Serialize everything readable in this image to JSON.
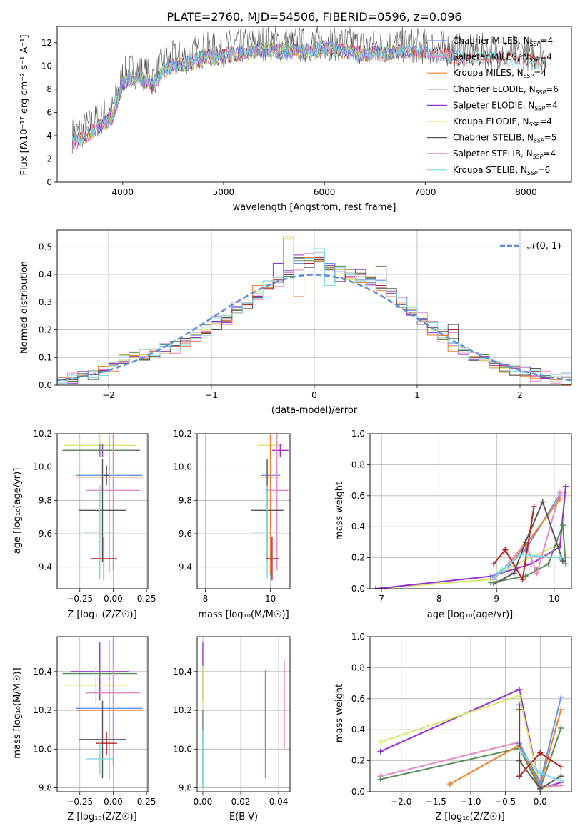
{
  "title": "PLATE=2760, MJD=54506, FIBERID=0596, z=0.096",
  "colors": {
    "Chabrier MILES": "#6495ed",
    "Salpeter MILES": "#e78ac3",
    "Kroupa MILES": "#f07f2a",
    "Chabrier ELODIE": "#5b8c5a",
    "Salpeter ELODIE": "#9932cc",
    "Kroupa ELODIE": "#d4e86b",
    "Chabrier STELIB": "#555555",
    "Salpeter STELIB": "#b22222",
    "Kroupa STELIB": "#7ed9de",
    "gaussian": "#5b8fd9"
  },
  "panel_labels": {
    "p1_xlabel": "wavelength [Angstrom, rest frame]",
    "p1_ylabel": "Flux [fλ10⁻¹⁷ erg cm⁻² s⁻¹ A⁻¹]",
    "p2_xlabel": "(data-model)/error",
    "p2_ylabel": "Normed distribution",
    "p2_legend": "𝒩(0, 1)",
    "p3_xlabel": "Z [log₁₀(Z/Z☉)]",
    "p3_ylabel": "age  [log₁₀(age/yr)]",
    "p4_xlabel": "mass [log₁₀(M/M☉)]",
    "p5_xlabel": "age  [log₁₀(age/yr)]",
    "p5_ylabel": "mass weight",
    "p6_xlabel": "Z [log₁₀(Z/Z☉)]",
    "p6_ylabel": "mass [log₁₀(M/M☉)]",
    "p7_xlabel": "E(B-V)",
    "p8_xlabel": "Z [log₁₀(Z/Z☉)]",
    "p8_ylabel": "mass weight"
  },
  "legend": [
    {
      "name": "Chabrier MILES",
      "nssp": "4"
    },
    {
      "name": "Salpeter MILES",
      "nssp": "4"
    },
    {
      "name": "Kroupa MILES",
      "nssp": "4"
    },
    {
      "name": "Chabrier ELODIE",
      "nssp": "6"
    },
    {
      "name": "Salpeter ELODIE",
      "nssp": "4"
    },
    {
      "name": "Kroupa ELODIE",
      "nssp": "4"
    },
    {
      "name": "Chabrier STELIB",
      "nssp": "5"
    },
    {
      "name": "Salpeter STELIB",
      "nssp": "4"
    },
    {
      "name": "Kroupa STELIB",
      "nssp": "6"
    }
  ],
  "chart_data": [
    {
      "type": "line",
      "id": "spectrum",
      "title": "PLATE=2760, MJD=54506, FIBERID=0596, z=0.096",
      "xlabel": "wavelength [Angstrom, rest frame]",
      "ylabel": "Flux [fλ10⁻¹⁷ erg cm⁻² s⁻¹ A⁻¹]",
      "xlim": [
        3350,
        8450
      ],
      "ylim": [
        0,
        13.4
      ],
      "xticks": [
        4000,
        5000,
        6000,
        7000,
        8000
      ],
      "yticks": [
        0,
        2,
        4,
        6,
        8,
        10,
        12
      ],
      "x": [
        3500,
        3600,
        3700,
        3800,
        3900,
        4000,
        4100,
        4200,
        4300,
        4400,
        4500,
        4600,
        4700,
        4800,
        4900,
        5000,
        5200,
        5400,
        5600,
        5800,
        6000,
        6200,
        6400,
        6600,
        6800,
        7000,
        7200,
        7400,
        7600,
        7800,
        8000,
        8200
      ],
      "series": [
        {
          "name": "Chabrier MILES",
          "values": [
            3.4,
            3.8,
            4.4,
            5.0,
            5.6,
            8.6,
            9.0,
            8.8,
            8.3,
            9.6,
            10.0,
            10.1,
            10.4,
            10.8,
            10.7,
            10.9,
            11.1,
            11.4,
            11.3,
            11.2,
            11.5,
            11.3,
            11.0,
            11.1,
            11.2,
            11.1,
            10.9,
            10.6,
            10.7,
            10.6,
            10.5,
            10.3
          ]
        },
        {
          "name": "Chabrier STELIB",
          "values": [
            4.2,
            4.6,
            5.2,
            5.6,
            6.0,
            8.8,
            9.2,
            9.0,
            8.6,
            9.9,
            10.2,
            10.4,
            10.7,
            11.0,
            10.9,
            11.1,
            11.3,
            11.6,
            11.5,
            11.4,
            11.7,
            11.5,
            11.2,
            11.3,
            11.4,
            11.3,
            11.1,
            10.8,
            10.9,
            10.8,
            10.7,
            10.5
          ]
        }
      ],
      "legend_position": "upper right"
    },
    {
      "type": "histogram",
      "id": "residuals",
      "xlabel": "(data-model)/error",
      "ylabel": "Normed distribution",
      "xlim": [
        -2.5,
        2.5
      ],
      "ylim": [
        0,
        0.56
      ],
      "xticks": [
        -2,
        -1,
        0,
        1,
        2
      ],
      "yticks": [
        0.0,
        0.1,
        0.2,
        0.3,
        0.4,
        0.5
      ],
      "bin_edges_start": -2.5,
      "bin_width": 0.1,
      "series": [
        {
          "name": "Chabrier MILES",
          "values": [
            0.02,
            0.02,
            0.03,
            0.04,
            0.05,
            0.07,
            0.09,
            0.1,
            0.11,
            0.12,
            0.14,
            0.14,
            0.15,
            0.18,
            0.2,
            0.23,
            0.24,
            0.28,
            0.29,
            0.33,
            0.36,
            0.38,
            0.4,
            0.44,
            0.46,
            0.48,
            0.44,
            0.41,
            0.4,
            0.38,
            0.38,
            0.36,
            0.33,
            0.3,
            0.27,
            0.24,
            0.21,
            0.17,
            0.15,
            0.12,
            0.1,
            0.09,
            0.08,
            0.07,
            0.06,
            0.05,
            0.04,
            0.04,
            0.03,
            0.03
          ]
        },
        {
          "name": "Salpeter STELIB",
          "values": [
            0.02,
            0.02,
            0.03,
            0.04,
            0.05,
            0.07,
            0.08,
            0.1,
            0.11,
            0.12,
            0.13,
            0.14,
            0.16,
            0.17,
            0.19,
            0.22,
            0.23,
            0.27,
            0.29,
            0.32,
            0.35,
            0.38,
            0.4,
            0.45,
            0.44,
            0.46,
            0.42,
            0.39,
            0.39,
            0.4,
            0.37,
            0.36,
            0.34,
            0.3,
            0.26,
            0.22,
            0.2,
            0.18,
            0.2,
            0.12,
            0.1,
            0.09,
            0.08,
            0.07,
            0.05,
            0.05,
            0.05,
            0.04,
            0.03,
            0.03
          ]
        },
        {
          "name": "Kroupa ELODIE",
          "values": [
            0.02,
            0.02,
            0.03,
            0.04,
            0.05,
            0.07,
            0.09,
            0.1,
            0.11,
            0.12,
            0.13,
            0.14,
            0.15,
            0.17,
            0.2,
            0.22,
            0.25,
            0.27,
            0.3,
            0.34,
            0.36,
            0.39,
            0.53,
            0.42,
            0.45,
            0.45,
            0.43,
            0.4,
            0.38,
            0.37,
            0.39,
            0.35,
            0.33,
            0.3,
            0.26,
            0.24,
            0.2,
            0.17,
            0.14,
            0.12,
            0.1,
            0.09,
            0.07,
            0.06,
            0.05,
            0.05,
            0.04,
            0.03,
            0.03,
            0.02
          ]
        }
      ],
      "reference": {
        "name": "𝒩(0, 1)",
        "mu": 0,
        "sigma": 1
      }
    },
    {
      "type": "scatter",
      "id": "age_vs_Z",
      "xlabel": "Z [log₁₀(Z/Z☉)]",
      "ylabel": "age  [log₁₀(age/yr)]",
      "xlim": [
        -0.42,
        0.26
      ],
      "ylim": [
        9.27,
        10.2
      ],
      "xticks": [
        -0.25,
        0.0,
        0.25
      ],
      "yticks": [
        9.4,
        9.6,
        9.8,
        10.0,
        10.2
      ],
      "points": [
        {
          "series": "Kroupa ELODIE",
          "x": -0.1,
          "y": 10.13,
          "xerr": 0.27,
          "yerr": 0.07
        },
        {
          "series": "Salpeter ELODIE",
          "x": -0.08,
          "y": 10.1,
          "xerr": 0.28,
          "yerr": 0.04
        },
        {
          "series": "Chabrier ELODIE",
          "x": -0.1,
          "y": 10.1,
          "xerr": 0.28,
          "yerr": 0.04
        },
        {
          "series": "Chabrier MILES",
          "x": -0.03,
          "y": 9.95,
          "xerr": 0.25,
          "yerr": 0.58
        },
        {
          "series": "Kroupa MILES",
          "x": -0.03,
          "y": 9.94,
          "xerr": 0.25,
          "yerr": 0.56
        },
        {
          "series": "Chabrier STELIB",
          "x": -0.05,
          "y": 9.95,
          "xerr": 0.02,
          "yerr": 0.06
        },
        {
          "series": "Salpeter MILES",
          "x": 0.0,
          "y": 9.86,
          "xerr": 0.2,
          "yerr": 0.48
        },
        {
          "series": "Chabrier STELIB",
          "x": -0.08,
          "y": 9.74,
          "xerr": 0.18,
          "yerr": 0.31
        },
        {
          "series": "Kroupa STELIB",
          "x": -0.1,
          "y": 9.61,
          "xerr": 0.12,
          "yerr": 0.28
        },
        {
          "series": "Salpeter STELIB",
          "x": -0.07,
          "y": 9.45,
          "xerr": 0.1,
          "yerr": 0.13
        }
      ]
    },
    {
      "type": "scatter",
      "id": "age_vs_mass",
      "xlabel": "mass [log₁₀(M/M☉)]",
      "xlim": [
        7.75,
        10.6
      ],
      "ylim": [
        9.27,
        10.2
      ],
      "xticks": [
        8,
        10
      ],
      "xtick_labels": [
        "8",
        "10"
      ],
      "yticks": [
        9.4,
        9.6,
        9.8,
        10.0,
        10.2
      ],
      "points": [
        {
          "series": "Kroupa ELODIE",
          "x": 10.0,
          "y": 10.13,
          "xerr": 0.4,
          "yerr": 0.07
        },
        {
          "series": "Salpeter ELODIE",
          "x": 10.3,
          "y": 10.1,
          "xerr": 0.25,
          "yerr": 0.04
        },
        {
          "series": "Chabrier MILES",
          "x": 10.0,
          "y": 9.95,
          "xerr": 0.3,
          "yerr": 0.6
        },
        {
          "series": "Kroupa MILES",
          "x": 10.0,
          "y": 9.94,
          "xerr": 0.3,
          "yerr": 0.58
        },
        {
          "series": "Salpeter MILES",
          "x": 10.2,
          "y": 9.86,
          "xerr": 0.35,
          "yerr": 0.48
        },
        {
          "series": "Chabrier STELIB",
          "x": 9.9,
          "y": 9.74,
          "xerr": 0.5,
          "yerr": 0.31
        },
        {
          "series": "Kroupa STELIB",
          "x": 9.9,
          "y": 9.61,
          "xerr": 0.45,
          "yerr": 0.28
        },
        {
          "series": "Salpeter STELIB",
          "x": 10.05,
          "y": 9.45,
          "xerr": 0.2,
          "yerr": 0.13
        }
      ]
    },
    {
      "type": "line",
      "id": "weight_vs_age",
      "xlabel": "age  [log₁₀(age/yr)]",
      "ylabel": "mass weight",
      "xlim": [
        6.8,
        10.3
      ],
      "ylim": [
        0,
        1.0
      ],
      "xticks": [
        7,
        8,
        9,
        10
      ],
      "yticks": [
        0.0,
        0.2,
        0.4,
        0.6,
        0.8,
        1.0
      ],
      "series": [
        {
          "name": "Kroupa ELODIE",
          "x": [
            6.9,
            8.9,
            9.3,
            10.1,
            10.2
          ],
          "y": [
            0.0,
            0.06,
            0.15,
            0.29,
            0.62
          ]
        },
        {
          "name": "Salpeter ELODIE",
          "x": [
            6.9,
            8.9,
            9.6,
            10.1,
            10.2
          ],
          "y": [
            0.0,
            0.08,
            0.16,
            0.27,
            0.66
          ]
        },
        {
          "name": "Chabrier ELODIE",
          "x": [
            8.9,
            9.5,
            9.7,
            9.9,
            10.15,
            10.2
          ],
          "y": [
            0.04,
            0.08,
            0.12,
            0.16,
            0.41,
            0.16
          ]
        },
        {
          "name": "Chabrier MILES",
          "x": [
            8.95,
            9.2,
            9.5,
            10.1
          ],
          "y": [
            0.08,
            0.15,
            0.25,
            0.61
          ]
        },
        {
          "name": "Salpeter MILES",
          "x": [
            8.95,
            9.3,
            9.5,
            9.7,
            10.1
          ],
          "y": [
            0.06,
            0.2,
            0.3,
            0.1,
            0.62
          ]
        },
        {
          "name": "Kroupa MILES",
          "x": [
            8.95,
            9.25,
            9.5,
            10.1
          ],
          "y": [
            0.07,
            0.17,
            0.28,
            0.58
          ]
        },
        {
          "name": "Chabrier STELIB",
          "x": [
            8.95,
            9.3,
            9.5,
            9.8,
            10.15
          ],
          "y": [
            0.03,
            0.1,
            0.3,
            0.56,
            0.18
          ]
        },
        {
          "name": "Salpeter STELIB",
          "x": [
            8.95,
            9.15,
            9.45,
            9.65
          ],
          "y": [
            0.16,
            0.25,
            0.06,
            0.53
          ]
        },
        {
          "name": "Kroupa STELIB",
          "x": [
            8.95,
            9.1,
            9.4,
            10.1
          ],
          "y": [
            0.07,
            0.12,
            0.22,
            0.2
          ]
        }
      ]
    },
    {
      "type": "scatter",
      "id": "mass_vs_Z",
      "xlabel": "Z [log₁₀(Z/Z☉)]",
      "ylabel": "mass [log₁₀(M/M☉)]",
      "xlim": [
        -0.42,
        0.26
      ],
      "ylim": [
        9.78,
        10.58
      ],
      "xticks": [
        -0.25,
        0.0,
        0.25
      ],
      "yticks": [
        9.8,
        10.0,
        10.2,
        10.4
      ],
      "points": [
        {
          "series": "Salpeter ELODIE",
          "x": -0.1,
          "y": 10.4,
          "xerr": 0.22,
          "yerr": 0.15
        },
        {
          "series": "Chabrier ELODIE",
          "x": -0.1,
          "y": 10.39,
          "xerr": 0.28,
          "yerr": 0.02
        },
        {
          "series": "Kroupa ELODIE",
          "x": -0.13,
          "y": 10.33,
          "xerr": 0.24,
          "yerr": 0.1
        },
        {
          "series": "Salpeter MILES",
          "x": 0.0,
          "y": 10.29,
          "xerr": 0.2,
          "yerr": 0.38
        },
        {
          "series": "Chabrier MILES",
          "x": -0.03,
          "y": 10.21,
          "xerr": 0.25,
          "yerr": 0.2
        },
        {
          "series": "Kroupa MILES",
          "x": -0.03,
          "y": 10.2,
          "xerr": 0.25,
          "yerr": 0.36
        },
        {
          "series": "Chabrier STELIB",
          "x": -0.08,
          "y": 10.05,
          "xerr": 0.18,
          "yerr": 0.2
        },
        {
          "series": "Salpeter STELIB",
          "x": -0.05,
          "y": 10.03,
          "xerr": 0.08,
          "yerr": 0.06
        },
        {
          "series": "Kroupa STELIB",
          "x": -0.1,
          "y": 9.95,
          "xerr": 0.1,
          "yerr": 0.08
        }
      ]
    },
    {
      "type": "scatter",
      "id": "mass_vs_ebv",
      "xlabel": "E(B-V)",
      "xlim": [
        -0.003,
        0.046
      ],
      "ylim": [
        9.78,
        10.58
      ],
      "xticks": [
        0.0,
        0.02,
        0.04
      ],
      "yticks": [
        9.8,
        10.0,
        10.2,
        10.4
      ],
      "points": [
        {
          "series": "Salpeter ELODIE",
          "x": 0.0,
          "y": 10.4,
          "yerr": 0.15
        },
        {
          "series": "Kroupa ELODIE",
          "x": 0.0,
          "y": 10.33,
          "yerr": 0.1
        },
        {
          "series": "Chabrier ELODIE",
          "x": 0.0,
          "y": 10.0,
          "yerr": 0.2
        },
        {
          "series": "Kroupa STELIB",
          "x": 0.0,
          "y": 9.95,
          "yerr": 0.15
        },
        {
          "series": "Chabrier MILES",
          "x": 0.033,
          "y": 10.21,
          "yerr": 0.2
        },
        {
          "series": "Kroupa MILES",
          "x": 0.033,
          "y": 10.1,
          "yerr": 0.25
        },
        {
          "series": "Salpeter MILES",
          "x": 0.043,
          "y": 10.23,
          "yerr": 0.23
        }
      ]
    },
    {
      "type": "line",
      "id": "weight_vs_Z",
      "xlabel": "Z [log₁₀(Z/Z☉)]",
      "ylabel": "mass weight",
      "xlim": [
        -2.45,
        0.45
      ],
      "ylim": [
        0,
        1.0
      ],
      "xticks": [
        -2.0,
        -1.5,
        -1.0,
        -0.5,
        0.0
      ],
      "yticks": [
        0.0,
        0.2,
        0.4,
        0.6,
        0.8,
        1.0
      ],
      "series": [
        {
          "name": "Salpeter ELODIE",
          "x": [
            -2.3,
            -0.3,
            0.0,
            0.3
          ],
          "y": [
            0.26,
            0.66,
            0.02,
            0.06
          ]
        },
        {
          "name": "Kroupa ELODIE",
          "x": [
            -2.3,
            -0.3,
            0.0,
            0.3
          ],
          "y": [
            0.32,
            0.62,
            0.02,
            0.04
          ]
        },
        {
          "name": "Salpeter MILES",
          "x": [
            -2.3,
            -0.3,
            0.0,
            0.3
          ],
          "y": [
            0.1,
            0.32,
            0.03,
            0.04
          ]
        },
        {
          "name": "Chabrier ELODIE",
          "x": [
            -2.3,
            -0.3,
            0.0,
            0.3
          ],
          "y": [
            0.08,
            0.28,
            0.02,
            0.41
          ]
        },
        {
          "name": "Kroupa MILES",
          "x": [
            -1.3,
            -0.3,
            0.0,
            0.3
          ],
          "y": [
            0.05,
            0.3,
            0.04,
            0.53
          ]
        },
        {
          "name": "Chabrier MILES",
          "x": [
            -0.3,
            0.0,
            0.3
          ],
          "y": [
            0.31,
            0.06,
            0.61
          ]
        },
        {
          "name": "Chabrier STELIB",
          "x": [
            -0.3,
            -0.3,
            0.0,
            0.3
          ],
          "y": [
            0.56,
            0.2,
            0.02,
            0.1
          ]
        },
        {
          "name": "Salpeter STELIB",
          "x": [
            -0.3,
            -0.3,
            0.0,
            0.3
          ],
          "y": [
            0.53,
            0.1,
            0.25,
            0.16
          ]
        },
        {
          "name": "Kroupa STELIB",
          "x": [
            -0.3,
            0.0,
            0.3
          ],
          "y": [
            0.27,
            0.12,
            0.07
          ]
        }
      ]
    }
  ]
}
